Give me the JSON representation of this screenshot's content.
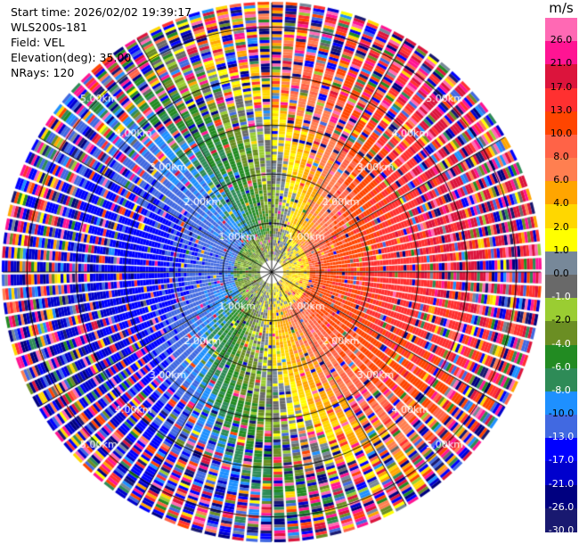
{
  "header": {
    "start_time": "Start time: 2026/02/02 19:39:17",
    "instrument": "WLS200s-181",
    "field": "Field: VEL",
    "elevation": "Elevation(deg): 35.00",
    "nrays": "NRays: 120"
  },
  "chart_data": {
    "type": "heatmap",
    "subtype": "ppi-polar",
    "field": "VEL",
    "unit": "m/s",
    "n_rays": 120,
    "elevation_deg": 35.0,
    "range_max_km": 5.5,
    "range_rings_km": [
      1,
      2,
      3,
      4,
      5
    ],
    "ring_labels": [
      "1.00km",
      "2.00km",
      "3.00km",
      "4.00km",
      "5.00km"
    ],
    "colorbar": {
      "ticks": [
        "26.0",
        "21.0",
        "17.0",
        "13.0",
        "10.0",
        "8.0",
        "6.0",
        "4.0",
        "2.0",
        "1.0",
        "0.0",
        "-1.0",
        "-2.0",
        "-4.0",
        "-6.0",
        "-8.0",
        "-10.0",
        "-13.0",
        "-17.0",
        "-21.0",
        "-26.0",
        "-30.0"
      ],
      "colors": [
        "#ff69b4",
        "#ff1493",
        "#dc143c",
        "#ff3030",
        "#ff4500",
        "#ff6347",
        "#ff7f50",
        "#ffa500",
        "#ffd700",
        "#ffff00",
        "#778899",
        "#696969",
        "#9acd32",
        "#6b8e23",
        "#228b22",
        "#2e8b57",
        "#1e90ff",
        "#4169e1",
        "#0000ff",
        "#0000cd",
        "#000080",
        "#191970"
      ]
    },
    "pattern": {
      "near_positive_bearing_deg": 110,
      "far_positive_bearing_deg": 60,
      "near_negative_bearing_deg": 290,
      "far_negative_bearing_deg": 240,
      "near_peak_ms": 9,
      "far_peak_ms": 22,
      "noise_onset_km": 3.0
    }
  }
}
